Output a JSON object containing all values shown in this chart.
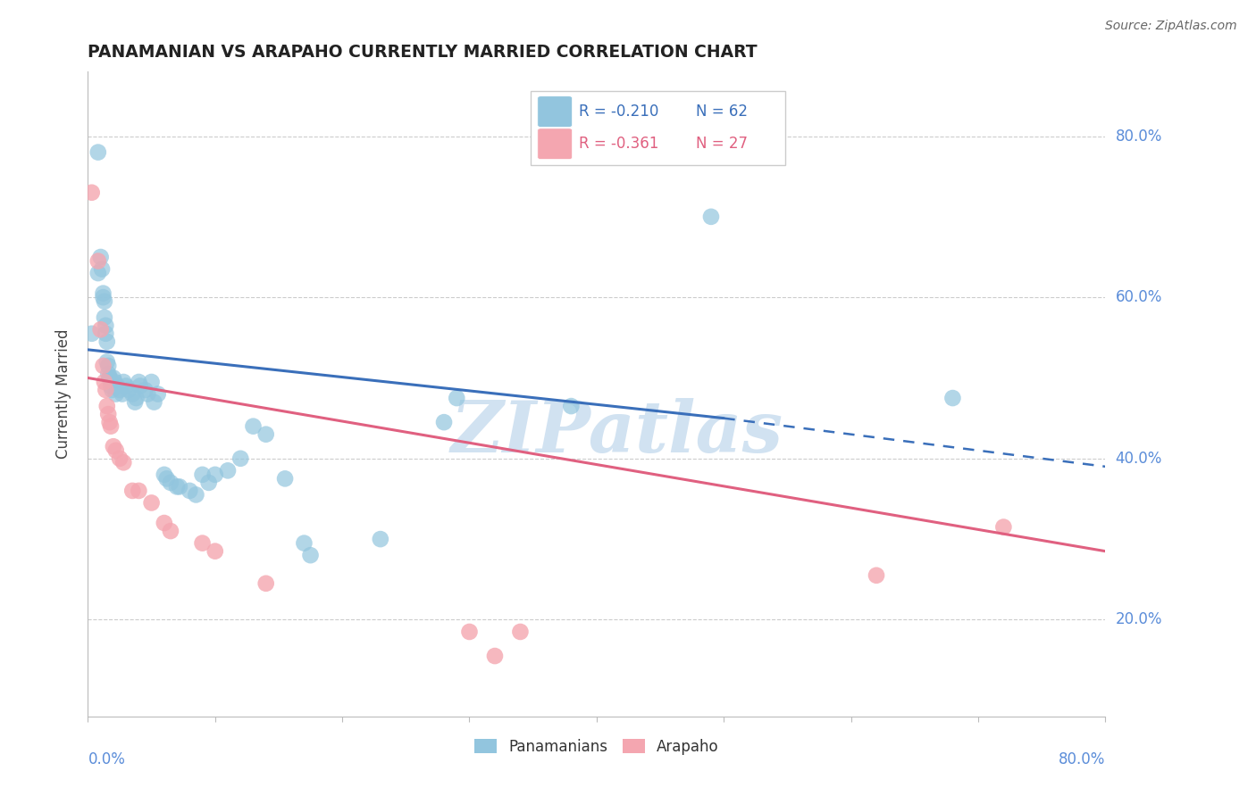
{
  "title": "PANAMANIAN VS ARAPAHO CURRENTLY MARRIED CORRELATION CHART",
  "source": "Source: ZipAtlas.com",
  "ylabel": "Currently Married",
  "xlim": [
    0.0,
    0.8
  ],
  "ylim": [
    0.08,
    0.88
  ],
  "legend_blue_r": "R = -0.210",
  "legend_blue_n": "N = 62",
  "legend_pink_r": "R = -0.361",
  "legend_pink_n": "N = 27",
  "blue_color": "#92c5de",
  "pink_color": "#f4a6b0",
  "blue_line_color": "#3a6fba",
  "pink_line_color": "#e06080",
  "axis_label_color": "#5b8dd9",
  "watermark": "ZIPatlas",
  "blue_points": [
    [
      0.003,
      0.555
    ],
    [
      0.008,
      0.78
    ],
    [
      0.008,
      0.63
    ],
    [
      0.01,
      0.65
    ],
    [
      0.011,
      0.635
    ],
    [
      0.012,
      0.605
    ],
    [
      0.012,
      0.6
    ],
    [
      0.013,
      0.595
    ],
    [
      0.013,
      0.575
    ],
    [
      0.014,
      0.565
    ],
    [
      0.014,
      0.555
    ],
    [
      0.015,
      0.545
    ],
    [
      0.015,
      0.52
    ],
    [
      0.016,
      0.515
    ],
    [
      0.016,
      0.505
    ],
    [
      0.017,
      0.5
    ],
    [
      0.017,
      0.5
    ],
    [
      0.018,
      0.495
    ],
    [
      0.018,
      0.49
    ],
    [
      0.019,
      0.485
    ],
    [
      0.02,
      0.5
    ],
    [
      0.021,
      0.495
    ],
    [
      0.022,
      0.48
    ],
    [
      0.023,
      0.49
    ],
    [
      0.025,
      0.485
    ],
    [
      0.027,
      0.48
    ],
    [
      0.028,
      0.495
    ],
    [
      0.03,
      0.49
    ],
    [
      0.032,
      0.485
    ],
    [
      0.035,
      0.48
    ],
    [
      0.037,
      0.47
    ],
    [
      0.038,
      0.475
    ],
    [
      0.04,
      0.495
    ],
    [
      0.041,
      0.49
    ],
    [
      0.045,
      0.485
    ],
    [
      0.047,
      0.48
    ],
    [
      0.05,
      0.495
    ],
    [
      0.052,
      0.47
    ],
    [
      0.055,
      0.48
    ],
    [
      0.06,
      0.38
    ],
    [
      0.062,
      0.375
    ],
    [
      0.065,
      0.37
    ],
    [
      0.07,
      0.365
    ],
    [
      0.072,
      0.365
    ],
    [
      0.08,
      0.36
    ],
    [
      0.085,
      0.355
    ],
    [
      0.09,
      0.38
    ],
    [
      0.095,
      0.37
    ],
    [
      0.1,
      0.38
    ],
    [
      0.11,
      0.385
    ],
    [
      0.12,
      0.4
    ],
    [
      0.13,
      0.44
    ],
    [
      0.14,
      0.43
    ],
    [
      0.155,
      0.375
    ],
    [
      0.17,
      0.295
    ],
    [
      0.175,
      0.28
    ],
    [
      0.23,
      0.3
    ],
    [
      0.28,
      0.445
    ],
    [
      0.29,
      0.475
    ],
    [
      0.38,
      0.465
    ],
    [
      0.49,
      0.7
    ],
    [
      0.68,
      0.475
    ]
  ],
  "pink_points": [
    [
      0.003,
      0.73
    ],
    [
      0.008,
      0.645
    ],
    [
      0.01,
      0.56
    ],
    [
      0.012,
      0.515
    ],
    [
      0.013,
      0.495
    ],
    [
      0.014,
      0.485
    ],
    [
      0.015,
      0.465
    ],
    [
      0.016,
      0.455
    ],
    [
      0.017,
      0.445
    ],
    [
      0.018,
      0.44
    ],
    [
      0.02,
      0.415
    ],
    [
      0.022,
      0.41
    ],
    [
      0.025,
      0.4
    ],
    [
      0.028,
      0.395
    ],
    [
      0.035,
      0.36
    ],
    [
      0.04,
      0.36
    ],
    [
      0.05,
      0.345
    ],
    [
      0.06,
      0.32
    ],
    [
      0.065,
      0.31
    ],
    [
      0.09,
      0.295
    ],
    [
      0.1,
      0.285
    ],
    [
      0.14,
      0.245
    ],
    [
      0.3,
      0.185
    ],
    [
      0.32,
      0.155
    ],
    [
      0.34,
      0.185
    ],
    [
      0.62,
      0.255
    ],
    [
      0.72,
      0.315
    ]
  ],
  "blue_line": {
    "x0": 0.0,
    "y0": 0.535,
    "x1": 0.5,
    "y1": 0.45
  },
  "blue_dashed_line": {
    "x0": 0.5,
    "y0": 0.45,
    "x1": 0.8,
    "y1": 0.39
  },
  "pink_line": {
    "x0": 0.0,
    "y0": 0.5,
    "x1": 0.8,
    "y1": 0.285
  },
  "ytick_positions": [
    0.2,
    0.4,
    0.6,
    0.8
  ],
  "ytick_labels": [
    "20.0%",
    "40.0%",
    "60.0%",
    "80.0%"
  ]
}
